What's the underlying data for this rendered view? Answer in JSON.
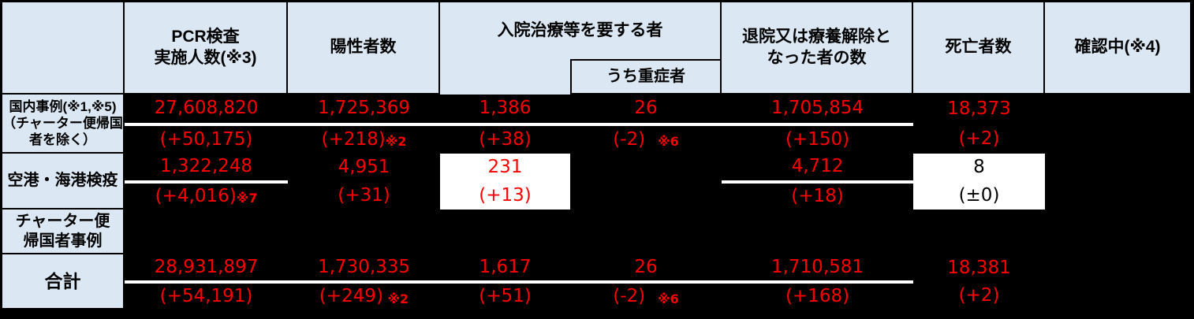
{
  "header": {
    "corner": "",
    "pcr": "PCR検査\n実施人数(※3)",
    "positive": "陽性者数",
    "hospitalized": "入院治療等を要する者",
    "severe": "うち重症者",
    "discharged": "退院又は療養解除と\nなった者の数",
    "deaths": "死亡者数",
    "confirming": "確認中(※4)"
  },
  "display": {
    "rows": [
      {
        "label": "国内事例(※1,※5)\n（チャーター便帰国\n者を除く）",
        "cells": [
          {
            "v": "27,608,820",
            "d": "(+50,175)",
            "n": ""
          },
          {
            "v": "1,725,369",
            "d": "(+218)",
            "n": "※2"
          },
          {
            "v": "1,386",
            "d": "(+38)",
            "n": ""
          },
          {
            "v": "26",
            "d": "(-2)",
            "n": "　※6"
          },
          {
            "v": "1,705,854",
            "d": "(+150)",
            "n": ""
          },
          {
            "v": "18,373",
            "d": "(+2)",
            "n": ""
          },
          {
            "v": "",
            "d": "",
            "n": ""
          }
        ]
      },
      {
        "label": "空港・海港検疫",
        "cells": [
          {
            "v": "1,322,248",
            "d": "(+4,016)",
            "n": "※7"
          },
          {
            "v": "4,951",
            "d": "(+31)",
            "n": ""
          },
          {
            "v": "231",
            "d": "(+13)",
            "n": ""
          },
          {
            "v": "",
            "d": "",
            "n": ""
          },
          {
            "v": "4,712",
            "d": "(+18)",
            "n": ""
          },
          {
            "v": "8",
            "d": "(±0)",
            "n": ""
          },
          {
            "v": "",
            "d": "",
            "n": ""
          }
        ]
      },
      {
        "label": "チャーター便\n帰国者事例",
        "cells": [
          {
            "v": "",
            "d": "",
            "n": ""
          },
          {
            "v": "",
            "d": "",
            "n": ""
          },
          {
            "v": "",
            "d": "",
            "n": ""
          },
          {
            "v": "",
            "d": "",
            "n": ""
          },
          {
            "v": "",
            "d": "",
            "n": ""
          },
          {
            "v": "",
            "d": "",
            "n": ""
          },
          {
            "v": "",
            "d": "",
            "n": ""
          }
        ]
      },
      {
        "label": "合計",
        "cells": [
          {
            "v": "28,931,897",
            "d": "(+54,191)",
            "n": ""
          },
          {
            "v": "1,730,335",
            "d": "(+249)",
            "n": " ※2"
          },
          {
            "v": "1,617",
            "d": "(+51)",
            "n": ""
          },
          {
            "v": "26",
            "d": "(-2)",
            "n": "　※6"
          },
          {
            "v": "1,710,581",
            "d": "(+168)",
            "n": ""
          },
          {
            "v": "18,381",
            "d": "(+2)",
            "n": ""
          },
          {
            "v": "",
            "d": "",
            "n": ""
          }
        ]
      }
    ]
  },
  "chart_data": {
    "type": "table",
    "columns": [
      "",
      "PCR検査実施人数(※3)",
      "陽性者数",
      "入院治療等を要する者",
      "うち重症者",
      "退院又は療養解除となった者の数",
      "死亡者数",
      "確認中(※4)"
    ],
    "rows": [
      {
        "label": "国内事例(※1,※5)（チャーター便帰国者を除く）",
        "pcr_tests": 27608820,
        "pcr_tests_change": 50175,
        "positives": 1725369,
        "positives_change": 218,
        "positives_note": "※2",
        "hospitalized": 1386,
        "hospitalized_change": 38,
        "severe": 26,
        "severe_change": -2,
        "severe_note": "※6",
        "discharged": 1705854,
        "discharged_change": 150,
        "deaths": 18373,
        "deaths_change": 2,
        "confirming": null
      },
      {
        "label": "空港・海港検疫",
        "pcr_tests": 1322248,
        "pcr_tests_change": 4016,
        "pcr_tests_note": "※7",
        "positives": 4951,
        "positives_change": 31,
        "hospitalized": 231,
        "hospitalized_change": 13,
        "severe": null,
        "discharged": 4712,
        "discharged_change": 18,
        "deaths": 8,
        "deaths_change": 0,
        "confirming": null
      },
      {
        "label": "チャーター便帰国者事例",
        "pcr_tests": null,
        "positives": null,
        "hospitalized": null,
        "severe": null,
        "discharged": null,
        "deaths": null,
        "confirming": null
      },
      {
        "label": "合計",
        "pcr_tests": 28931897,
        "pcr_tests_change": 54191,
        "positives": 1730335,
        "positives_change": 249,
        "positives_note": "※2",
        "hospitalized": 1617,
        "hospitalized_change": 51,
        "severe": 26,
        "severe_change": -2,
        "severe_note": "※6",
        "discharged": 1710581,
        "discharged_change": 168,
        "deaths": 18381,
        "deaths_change": 2,
        "confirming": null
      }
    ],
    "layout": {
      "highlighted_cells": [
        "空港・海港検疫/入院治療等を要する者",
        "空港・海港検疫/死亡者数"
      ],
      "value_color": "#ff0000",
      "header_bg": "#dbe7f3",
      "background": "#000000",
      "highlight_bg": "#ffffff"
    }
  }
}
